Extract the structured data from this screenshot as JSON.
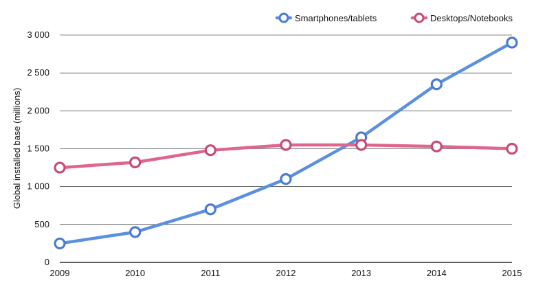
{
  "chart_data": {
    "type": "line",
    "title": "",
    "xlabel": "",
    "ylabel": "Global installed base (millions)",
    "x": [
      "2009",
      "2010",
      "2011",
      "2012",
      "2013",
      "2014",
      "2015"
    ],
    "ylim": [
      0,
      3000
    ],
    "yticks": [
      {
        "value": 0,
        "label": "0"
      },
      {
        "value": 500,
        "label": "500"
      },
      {
        "value": 1000,
        "label": "1 000"
      },
      {
        "value": 1500,
        "label": "1 500"
      },
      {
        "value": 2000,
        "label": "2 000"
      },
      {
        "value": 2500,
        "label": "2 500"
      },
      {
        "value": 3000,
        "label": "3 000"
      }
    ],
    "grid": true,
    "legend_position": "top-right",
    "series": [
      {
        "name": "Smartphones/tablets",
        "color": "#5b8fe0",
        "marker_color": "#4a7bd0",
        "values": [
          250,
          400,
          700,
          1100,
          1650,
          2350,
          2900
        ]
      },
      {
        "name": "Desktops/Notebooks",
        "color": "#e0648e",
        "marker_color": "#c84a78",
        "values": [
          1250,
          1320,
          1480,
          1550,
          1550,
          1530,
          1500
        ]
      }
    ]
  }
}
